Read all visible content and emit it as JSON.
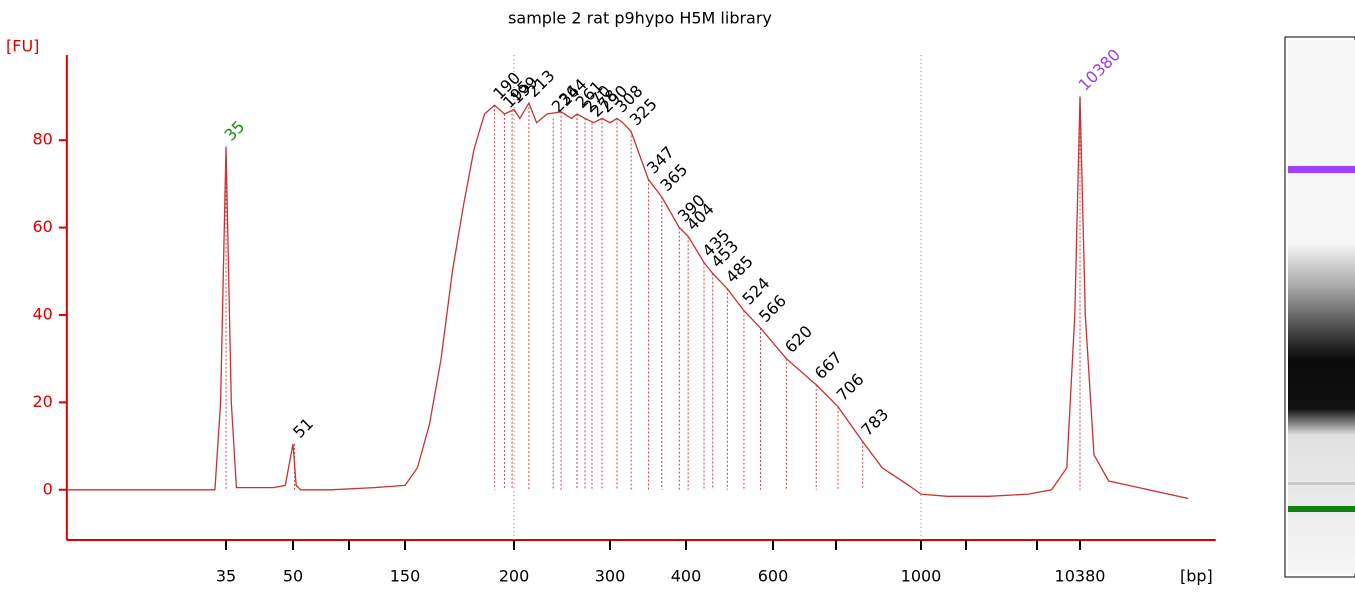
{
  "chart_data": {
    "type": "line",
    "title": "sample 2 rat p9hypo H5M library",
    "ylabel": "[FU]",
    "xlabel": "[bp]",
    "ylim": [
      -11.5,
      99.5
    ],
    "yticks": [
      0,
      20,
      40,
      60,
      80
    ],
    "xlim": [
      15,
      36000
    ],
    "xticks": [
      35,
      50,
      150,
      200,
      300,
      400,
      600,
      1000,
      10380
    ],
    "xminorticks": [
      100,
      700,
      2000,
      7000
    ],
    "series": [
      {
        "color": "#c83232",
        "x": [
          15,
          25,
          33,
          34,
          35,
          36,
          37,
          45,
          48,
          50,
          52,
          55,
          80,
          120,
          150,
          155,
          160,
          165,
          170,
          175,
          180,
          185,
          190,
          195,
          200,
          205,
          213,
          220,
          230,
          244,
          255,
          261,
          270,
          280,
          290,
          300,
          308,
          315,
          325,
          347,
          365,
          390,
          404,
          435,
          453,
          485,
          524,
          566,
          620,
          667,
          706,
          783,
          850,
          950,
          1000,
          1500,
          3000,
          6000,
          8000,
          9200,
          9900,
          10380,
          10900,
          11800,
          13500,
          28000
        ],
        "values": [
          0,
          0,
          0,
          20,
          78.5,
          20,
          0.5,
          0.5,
          1,
          10.5,
          1,
          0,
          0,
          0.5,
          1,
          5,
          15,
          30,
          50,
          65,
          78,
          86,
          88,
          86,
          87,
          85,
          88.5,
          84,
          86,
          86.5,
          85,
          86,
          85,
          84,
          85,
          84,
          85,
          84,
          82,
          71,
          67,
          60,
          58,
          52,
          49.5,
          46,
          41,
          37,
          30,
          24,
          19,
          11,
          5,
          1,
          -1,
          -1.5,
          -1.5,
          -1,
          0,
          5,
          40,
          90,
          40,
          8,
          2,
          -2
        ]
      }
    ],
    "peaks": [
      {
        "bp": 35,
        "fu": 78.5,
        "color": "#1a8a1a"
      },
      {
        "bp": 51,
        "fu": 10.5,
        "color": "#000000"
      },
      {
        "bp": 190,
        "fu": 88,
        "color": "#000000"
      },
      {
        "bp": 195,
        "fu": 86,
        "color": "#000000"
      },
      {
        "bp": 199,
        "fu": 87,
        "color": "#000000"
      },
      {
        "bp": 213,
        "fu": 88.5,
        "color": "#000000"
      },
      {
        "bp": 236,
        "fu": 85,
        "color": "#000000"
      },
      {
        "bp": 244,
        "fu": 86.5,
        "color": "#000000"
      },
      {
        "bp": 261,
        "fu": 86,
        "color": "#000000"
      },
      {
        "bp": 270,
        "fu": 85,
        "color": "#000000"
      },
      {
        "bp": 278,
        "fu": 84,
        "color": "#000000"
      },
      {
        "bp": 290,
        "fu": 85,
        "color": "#000000"
      },
      {
        "bp": 308,
        "fu": 85,
        "color": "#000000"
      },
      {
        "bp": 325,
        "fu": 82,
        "color": "#000000"
      },
      {
        "bp": 347,
        "fu": 71,
        "color": "#000000"
      },
      {
        "bp": 365,
        "fu": 67,
        "color": "#000000"
      },
      {
        "bp": 390,
        "fu": 60,
        "color": "#000000"
      },
      {
        "bp": 404,
        "fu": 58,
        "color": "#000000"
      },
      {
        "bp": 435,
        "fu": 52,
        "color": "#000000"
      },
      {
        "bp": 453,
        "fu": 49.5,
        "color": "#000000"
      },
      {
        "bp": 485,
        "fu": 46,
        "color": "#000000"
      },
      {
        "bp": 524,
        "fu": 41,
        "color": "#000000"
      },
      {
        "bp": 566,
        "fu": 37,
        "color": "#000000"
      },
      {
        "bp": 620,
        "fu": 30,
        "color": "#000000"
      },
      {
        "bp": 667,
        "fu": 24,
        "color": "#000000"
      },
      {
        "bp": 706,
        "fu": 19,
        "color": "#000000"
      },
      {
        "bp": 783,
        "fu": 11,
        "color": "#000000"
      },
      {
        "bp": 10380,
        "fu": 90,
        "color": "#9a40e0"
      }
    ]
  }
}
